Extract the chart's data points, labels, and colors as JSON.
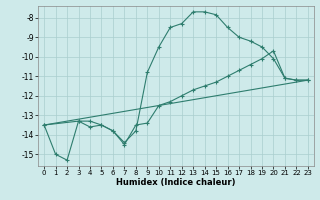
{
  "xlabel": "Humidex (Indice chaleur)",
  "bg_color": "#ceeaea",
  "grid_color": "#aacece",
  "line_color": "#2e7d6e",
  "xlim": [
    -0.5,
    23.5
  ],
  "ylim": [
    -15.6,
    -7.4
  ],
  "yticks": [
    -15,
    -14,
    -13,
    -12,
    -11,
    -10,
    -9,
    -8
  ],
  "xticks": [
    0,
    1,
    2,
    3,
    4,
    5,
    6,
    7,
    8,
    9,
    10,
    11,
    12,
    13,
    14,
    15,
    16,
    17,
    18,
    19,
    20,
    21,
    22,
    23
  ],
  "line1_x": [
    0,
    1,
    2,
    3,
    4,
    5,
    6,
    7,
    8,
    9,
    10,
    11,
    12,
    13,
    14,
    15,
    16,
    17,
    18,
    19,
    20,
    21,
    22,
    23
  ],
  "line1_y": [
    -13.5,
    -15.0,
    -15.3,
    -13.3,
    -13.3,
    -13.5,
    -13.8,
    -14.4,
    -13.8,
    -10.8,
    -9.5,
    -8.5,
    -8.3,
    -7.7,
    -7.7,
    -7.85,
    -8.5,
    -9.0,
    -9.2,
    -9.5,
    -10.1,
    -11.1,
    -11.2,
    -11.2
  ],
  "line2_x": [
    0,
    3,
    4,
    5,
    6,
    7,
    8,
    9,
    10,
    11,
    12,
    13,
    14,
    15,
    16,
    17,
    18,
    19,
    20,
    21,
    22,
    23
  ],
  "line2_y": [
    -13.5,
    -13.3,
    -13.6,
    -13.5,
    -13.8,
    -14.5,
    -13.5,
    -13.4,
    -12.5,
    -12.3,
    -12.0,
    -11.7,
    -11.5,
    -11.3,
    -11.0,
    -10.7,
    -10.4,
    -10.1,
    -9.7,
    -11.1,
    -11.2,
    -11.2
  ],
  "line3_x": [
    0,
    23
  ],
  "line3_y": [
    -13.5,
    -11.2
  ]
}
